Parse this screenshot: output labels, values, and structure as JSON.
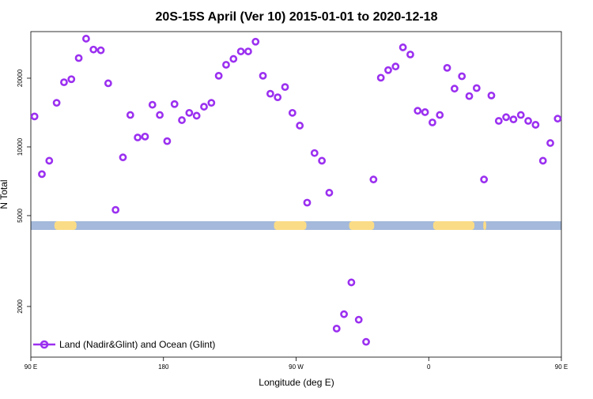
{
  "chart_data": {
    "type": "scatter",
    "title": "20S-15S April (Ver 10)   2015-01-01 to 2020-12-18",
    "xlabel": "Longitude (deg E)",
    "ylabel": "N Total",
    "xlim": [
      90,
      450
    ],
    "ylim": [
      1200,
      32000
    ],
    "yscale": "log",
    "grid": false,
    "legend_position": "bottom-left",
    "x_ticks": [
      {
        "value": 90,
        "label": "90 E"
      },
      {
        "value": 180,
        "label": "180"
      },
      {
        "value": 270,
        "label": "90 W"
      },
      {
        "value": 360,
        "label": "0"
      },
      {
        "value": 450,
        "label": "90 E"
      }
    ],
    "y_ticks": [
      {
        "value": 2000,
        "label": "2000"
      },
      {
        "value": 5000,
        "label": "5000"
      },
      {
        "value": 10000,
        "label": "10000"
      },
      {
        "value": 20000,
        "label": "20000"
      }
    ],
    "series": [
      {
        "name": "Land (Nadir&Glint) and Ocean (Glint)",
        "color": "#9b30f0",
        "marker": "open-circle",
        "x": [
          92.5,
          97.5,
          102.5,
          107.5,
          112.5,
          117.5,
          122.5,
          127.5,
          132.5,
          137.5,
          142.5,
          147.5,
          152.5,
          157.5,
          162.5,
          167.5,
          172.5,
          177.5,
          182.5,
          187.5,
          192.5,
          197.5,
          202.5,
          207.5,
          212.5,
          217.5,
          222.5,
          227.5,
          232.5,
          237.5,
          242.5,
          247.5,
          252.5,
          257.5,
          262.5,
          267.5,
          272.5,
          277.5,
          282.5,
          287.5,
          292.5,
          297.5,
          302.5,
          307.5,
          312.5,
          317.5,
          322.5,
          327.5,
          332.5,
          337.5,
          342.5,
          347.5,
          352.5,
          357.5,
          362.5,
          367.5,
          372.5,
          377.5,
          382.5,
          387.5,
          392.5,
          397.5,
          402.5,
          407.5,
          412.5,
          417.5,
          422.5,
          427.5,
          432.5,
          437.5,
          442.5,
          447.5
        ],
        "y": [
          13600,
          7600,
          8700,
          15600,
          19200,
          19800,
          24500,
          29800,
          26700,
          26500,
          19000,
          5300,
          9000,
          13800,
          11000,
          11100,
          15300,
          13800,
          10600,
          15400,
          13100,
          14100,
          13700,
          15000,
          15600,
          20500,
          22900,
          24300,
          26200,
          26200,
          28900,
          20500,
          17100,
          16500,
          18300,
          14100,
          12400,
          5700,
          9400,
          8700,
          6300,
          1600,
          1850,
          2550,
          1750,
          1400,
          7200,
          20100,
          21700,
          22500,
          27300,
          25400,
          14400,
          14200,
          12800,
          13800,
          22200,
          18000,
          20400,
          16700,
          18100,
          7200,
          16800,
          13000,
          13500,
          13200,
          13800,
          13000,
          12500,
          8700,
          10400,
          13300
        ]
      }
    ],
    "surface_band": {
      "ocean_color": "#a4b9db",
      "land_color": "#fbdc86",
      "land_segments": [
        [
          106,
          121
        ],
        [
          255,
          277
        ],
        [
          306,
          323
        ],
        [
          363,
          391
        ],
        [
          397,
          399
        ]
      ]
    }
  }
}
